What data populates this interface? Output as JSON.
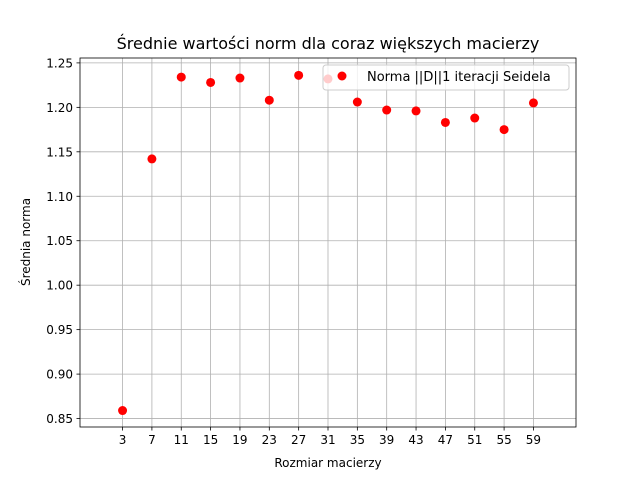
{
  "chart_data": {
    "type": "scatter",
    "title": "Średnie wartości norm dla coraz większych macierzy",
    "xlabel": "Rozmiar macierzy",
    "ylabel": "Średnia norma",
    "x": [
      3,
      7,
      11,
      15,
      19,
      23,
      27,
      31,
      35,
      39,
      43,
      47,
      51,
      55,
      59
    ],
    "series": [
      {
        "name": "Norma ||D||1 iteracji Seidela",
        "color": "#ff0000",
        "marker": "circle",
        "values": [
          0.859,
          1.142,
          1.234,
          1.228,
          1.233,
          1.208,
          1.236,
          1.232,
          1.206,
          1.197,
          1.196,
          1.183,
          1.188,
          1.175,
          1.205
        ]
      }
    ],
    "x_ticks": [
      "3",
      "7",
      "11",
      "15",
      "19",
      "23",
      "27",
      "31",
      "35",
      "39",
      "43",
      "47",
      "51",
      "55",
      "59"
    ],
    "y_ticks": [
      "0.85",
      "0.90",
      "0.95",
      "1.00",
      "1.05",
      "1.10",
      "1.15",
      "1.20",
      "1.25"
    ],
    "xlim": [
      -2.8,
      64.8
    ],
    "ylim": [
      0.8405,
      1.2555
    ],
    "grid": true,
    "legend_position": "top-right"
  }
}
